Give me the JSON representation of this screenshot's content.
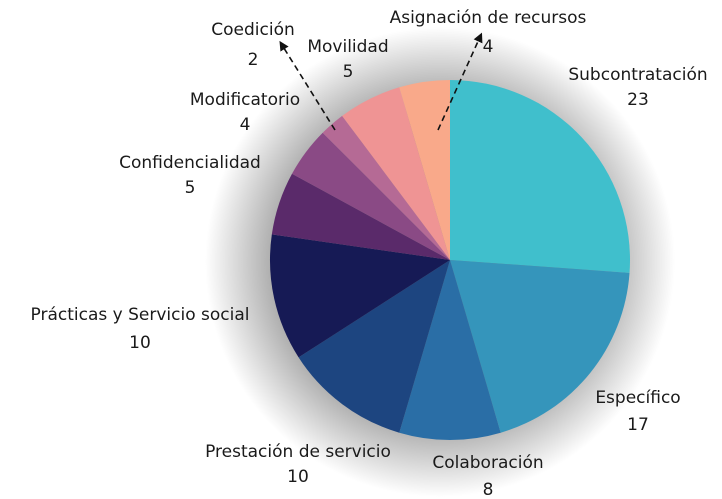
{
  "chart_data": {
    "type": "pie",
    "categories": [
      "Subcontratación",
      "Específico",
      "Colaboración",
      "Prestación de servicio",
      "Prácticas y Servicio social",
      "Confidencialidad",
      "Modificatorio",
      "Coedición",
      "Movilidad",
      "Asignación de recursos"
    ],
    "values": [
      23,
      17,
      8,
      10,
      10,
      5,
      4,
      2,
      5,
      4
    ],
    "colors": [
      "#40bfcc",
      "#3595bb",
      "#2a6ea6",
      "#1d4580",
      "#161a55",
      "#5a2a6a",
      "#8a4a85",
      "#b56a95",
      "#ef9494",
      "#f9a98a"
    ]
  }
}
